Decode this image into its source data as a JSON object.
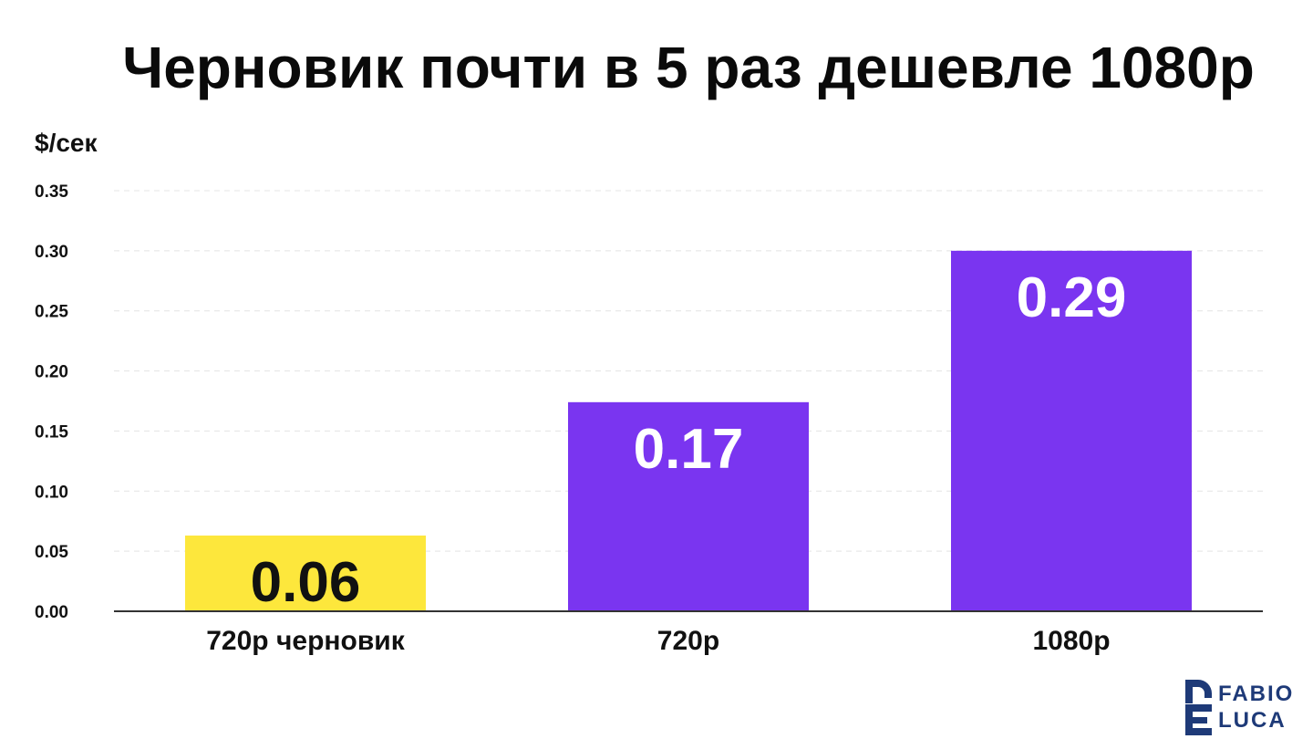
{
  "chart_data": {
    "type": "bar",
    "title": "Черновик почти в 5 раз дешевле 1080p",
    "ylabel": "$/сек",
    "xlabel": "",
    "ylim": [
      0,
      0.35
    ],
    "yticks": [
      "0.00",
      "0.05",
      "0.10",
      "0.15",
      "0.20",
      "0.25",
      "0.30",
      "0.35"
    ],
    "categories": [
      "720p черновик",
      "720p",
      "1080p"
    ],
    "values": [
      0.06,
      0.17,
      0.29
    ],
    "bar_heights": [
      0.063,
      0.174,
      0.3
    ],
    "data_labels": [
      "0.06",
      "0.17",
      "0.29"
    ],
    "colors": [
      "#fde73c",
      "#7a35f0",
      "#7a35f0"
    ],
    "label_colors": [
      "#111111",
      "#ffffff",
      "#ffffff"
    ],
    "grid": true,
    "legend": "none"
  },
  "logo": {
    "top": "FABIO",
    "bottom": "LUCA",
    "color": "#1e3a78"
  }
}
